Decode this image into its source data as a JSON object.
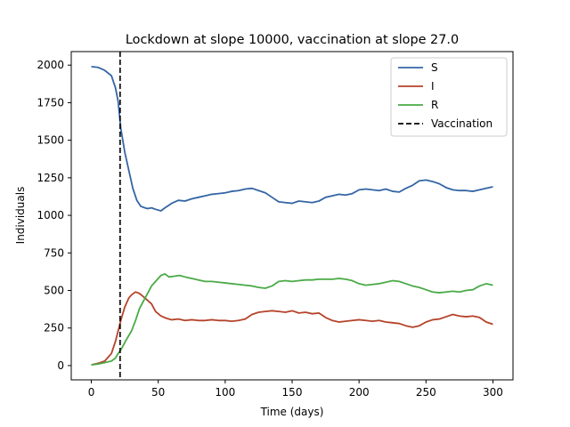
{
  "chart_data": {
    "type": "line",
    "title": "Lockdown at slope 10000, vaccination at slope 27.0",
    "xlabel": "Time (days)",
    "ylabel": "Individuals",
    "xlim": [
      -15,
      315
    ],
    "ylim": [
      -95,
      2090
    ],
    "x_ticks": [
      0,
      50,
      100,
      150,
      200,
      250,
      300
    ],
    "y_ticks": [
      0,
      250,
      500,
      750,
      1000,
      1250,
      1500,
      1750,
      2000
    ],
    "grid": false,
    "legend_position": "upper right",
    "series": [
      {
        "name": "S",
        "color": "#3465a4",
        "points": [
          [
            0,
            1990
          ],
          [
            5,
            1985
          ],
          [
            10,
            1965
          ],
          [
            15,
            1930
          ],
          [
            18,
            1850
          ],
          [
            20,
            1760
          ],
          [
            22,
            1580
          ],
          [
            25,
            1420
          ],
          [
            28,
            1300
          ],
          [
            31,
            1180
          ],
          [
            34,
            1100
          ],
          [
            37,
            1060
          ],
          [
            40,
            1050
          ],
          [
            42,
            1045
          ],
          [
            45,
            1050
          ],
          [
            48,
            1040
          ],
          [
            52,
            1030
          ],
          [
            55,
            1050
          ],
          [
            60,
            1080
          ],
          [
            65,
            1100
          ],
          [
            70,
            1095
          ],
          [
            75,
            1110
          ],
          [
            80,
            1120
          ],
          [
            85,
            1130
          ],
          [
            90,
            1140
          ],
          [
            95,
            1145
          ],
          [
            100,
            1150
          ],
          [
            105,
            1160
          ],
          [
            110,
            1165
          ],
          [
            115,
            1175
          ],
          [
            120,
            1180
          ],
          [
            125,
            1165
          ],
          [
            130,
            1150
          ],
          [
            135,
            1120
          ],
          [
            140,
            1090
          ],
          [
            145,
            1085
          ],
          [
            150,
            1080
          ],
          [
            155,
            1095
          ],
          [
            160,
            1090
          ],
          [
            165,
            1085
          ],
          [
            170,
            1095
          ],
          [
            175,
            1120
          ],
          [
            180,
            1130
          ],
          [
            185,
            1140
          ],
          [
            190,
            1135
          ],
          [
            195,
            1145
          ],
          [
            200,
            1170
          ],
          [
            205,
            1175
          ],
          [
            210,
            1170
          ],
          [
            215,
            1165
          ],
          [
            220,
            1175
          ],
          [
            225,
            1160
          ],
          [
            230,
            1155
          ],
          [
            235,
            1180
          ],
          [
            240,
            1200
          ],
          [
            245,
            1230
          ],
          [
            250,
            1235
          ],
          [
            255,
            1225
          ],
          [
            260,
            1210
          ],
          [
            265,
            1185
          ],
          [
            270,
            1170
          ],
          [
            275,
            1165
          ],
          [
            280,
            1165
          ],
          [
            285,
            1160
          ],
          [
            290,
            1170
          ],
          [
            295,
            1180
          ],
          [
            300,
            1190
          ]
        ]
      },
      {
        "name": "I",
        "color": "#b5432a",
        "points": [
          [
            0,
            5
          ],
          [
            5,
            15
          ],
          [
            10,
            30
          ],
          [
            15,
            80
          ],
          [
            18,
            160
          ],
          [
            20,
            230
          ],
          [
            22,
            300
          ],
          [
            25,
            390
          ],
          [
            28,
            450
          ],
          [
            30,
            470
          ],
          [
            33,
            490
          ],
          [
            36,
            480
          ],
          [
            40,
            450
          ],
          [
            45,
            410
          ],
          [
            48,
            360
          ],
          [
            52,
            330
          ],
          [
            56,
            315
          ],
          [
            60,
            305
          ],
          [
            65,
            310
          ],
          [
            70,
            300
          ],
          [
            75,
            305
          ],
          [
            80,
            300
          ],
          [
            85,
            300
          ],
          [
            90,
            305
          ],
          [
            95,
            300
          ],
          [
            100,
            300
          ],
          [
            105,
            295
          ],
          [
            110,
            300
          ],
          [
            115,
            310
          ],
          [
            120,
            340
          ],
          [
            125,
            355
          ],
          [
            130,
            360
          ],
          [
            135,
            365
          ],
          [
            140,
            360
          ],
          [
            145,
            355
          ],
          [
            150,
            365
          ],
          [
            155,
            350
          ],
          [
            160,
            355
          ],
          [
            165,
            345
          ],
          [
            170,
            350
          ],
          [
            175,
            320
          ],
          [
            180,
            300
          ],
          [
            185,
            290
          ],
          [
            190,
            295
          ],
          [
            195,
            300
          ],
          [
            200,
            305
          ],
          [
            205,
            300
          ],
          [
            210,
            295
          ],
          [
            215,
            300
          ],
          [
            220,
            290
          ],
          [
            225,
            285
          ],
          [
            230,
            280
          ],
          [
            235,
            265
          ],
          [
            240,
            255
          ],
          [
            245,
            265
          ],
          [
            250,
            290
          ],
          [
            255,
            305
          ],
          [
            260,
            310
          ],
          [
            265,
            325
          ],
          [
            270,
            340
          ],
          [
            275,
            330
          ],
          [
            280,
            325
          ],
          [
            285,
            330
          ],
          [
            290,
            320
          ],
          [
            295,
            290
          ],
          [
            300,
            275
          ]
        ]
      },
      {
        "name": "R",
        "color": "#4aaa46",
        "points": [
          [
            0,
            5
          ],
          [
            5,
            10
          ],
          [
            10,
            20
          ],
          [
            15,
            30
          ],
          [
            18,
            50
          ],
          [
            20,
            80
          ],
          [
            23,
            120
          ],
          [
            26,
            170
          ],
          [
            30,
            230
          ],
          [
            33,
            300
          ],
          [
            36,
            380
          ],
          [
            39,
            430
          ],
          [
            42,
            480
          ],
          [
            45,
            530
          ],
          [
            48,
            560
          ],
          [
            52,
            600
          ],
          [
            55,
            610
          ],
          [
            58,
            590
          ],
          [
            62,
            595
          ],
          [
            66,
            600
          ],
          [
            70,
            590
          ],
          [
            75,
            580
          ],
          [
            80,
            570
          ],
          [
            85,
            560
          ],
          [
            90,
            560
          ],
          [
            95,
            555
          ],
          [
            100,
            550
          ],
          [
            105,
            545
          ],
          [
            110,
            540
          ],
          [
            115,
            535
          ],
          [
            120,
            530
          ],
          [
            125,
            520
          ],
          [
            130,
            515
          ],
          [
            135,
            530
          ],
          [
            140,
            560
          ],
          [
            145,
            565
          ],
          [
            150,
            560
          ],
          [
            155,
            565
          ],
          [
            160,
            570
          ],
          [
            165,
            570
          ],
          [
            170,
            575
          ],
          [
            175,
            575
          ],
          [
            180,
            575
          ],
          [
            185,
            580
          ],
          [
            190,
            575
          ],
          [
            195,
            565
          ],
          [
            200,
            545
          ],
          [
            205,
            535
          ],
          [
            210,
            540
          ],
          [
            215,
            545
          ],
          [
            220,
            555
          ],
          [
            225,
            565
          ],
          [
            230,
            560
          ],
          [
            235,
            545
          ],
          [
            240,
            530
          ],
          [
            245,
            520
          ],
          [
            250,
            505
          ],
          [
            255,
            490
          ],
          [
            260,
            485
          ],
          [
            265,
            490
          ],
          [
            270,
            495
          ],
          [
            275,
            490
          ],
          [
            280,
            500
          ],
          [
            285,
            505
          ],
          [
            290,
            530
          ],
          [
            295,
            545
          ],
          [
            300,
            535
          ]
        ]
      }
    ],
    "vlines": [
      {
        "name": "Vaccination",
        "x": 21.5,
        "color": "#000000",
        "style": "dashed"
      }
    ]
  }
}
